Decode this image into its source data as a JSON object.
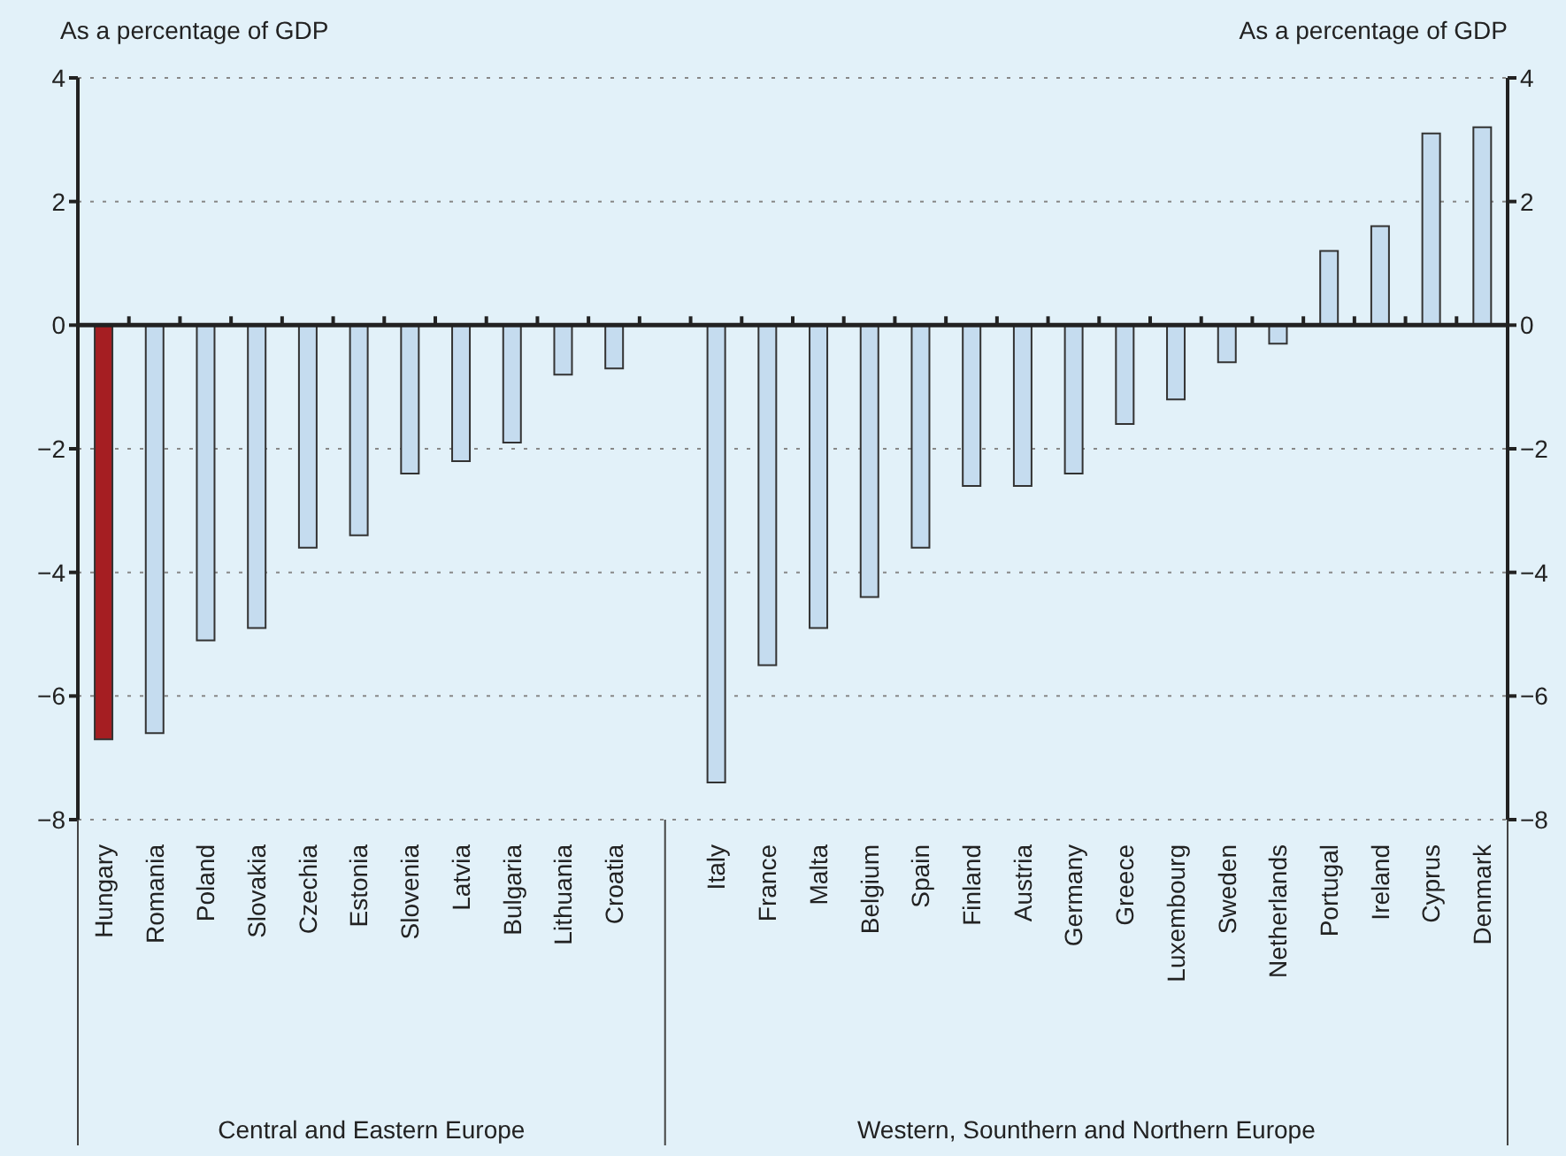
{
  "chart_data": {
    "type": "bar",
    "ylabel": "As a percentage of GDP",
    "y2label": "As a percentage of GDP",
    "categories": [
      "Hungary",
      "Romania",
      "Poland",
      "Slovakia",
      "Czechia",
      "Estonia",
      "Slovenia",
      "Latvia",
      "Bulgaria",
      "Lithuania",
      "Croatia",
      null,
      "Italy",
      "France",
      "Malta",
      "Belgium",
      "Spain",
      "Finland",
      "Austria",
      "Germany",
      "Greece",
      "Luxembourg",
      "Sweden",
      "Netherlands",
      "Portugal",
      "Ireland",
      "Cyprus",
      "Denmark"
    ],
    "values": [
      -6.7,
      -6.6,
      -5.1,
      -4.9,
      -3.6,
      -3.4,
      -2.4,
      -2.2,
      -1.9,
      -0.8,
      -0.7,
      null,
      -7.4,
      -5.5,
      -4.9,
      -4.4,
      -3.6,
      -2.6,
      -2.6,
      -2.4,
      -1.6,
      -1.2,
      -0.6,
      -0.3,
      1.2,
      1.6,
      3.1,
      3.2
    ],
    "colors": [
      "#a51e22",
      "#c5dcef",
      "#c5dcef",
      "#c5dcef",
      "#c5dcef",
      "#c5dcef",
      "#c5dcef",
      "#c5dcef",
      "#c5dcef",
      "#c5dcef",
      "#c5dcef",
      "#c5dcef",
      "#c5dcef",
      "#c5dcef",
      "#c5dcef",
      "#c5dcef",
      "#c5dcef",
      "#c5dcef",
      "#c5dcef",
      "#c5dcef",
      "#c5dcef",
      "#c5dcef",
      "#c5dcef",
      "#c5dcef",
      "#c5dcef",
      "#c5dcef",
      "#c5dcef",
      "#c5dcef"
    ],
    "ylim": [
      -8,
      4
    ],
    "yticks": [
      -8,
      -6,
      -4,
      -2,
      0,
      2,
      4
    ],
    "y2lim": [
      -8,
      4
    ],
    "y2ticks": [
      -8,
      -6,
      -4,
      -2,
      0,
      2,
      4
    ],
    "grid": "y",
    "annotations": [
      "Central and Eastern Europe",
      "Western, Sounthern and Northern Europe"
    ]
  }
}
